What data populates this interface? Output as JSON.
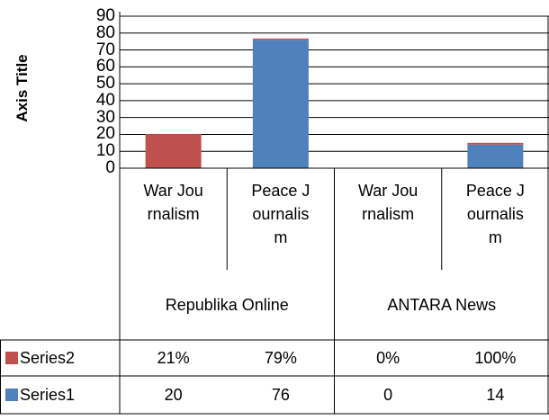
{
  "chart_data": {
    "type": "stacked_bar",
    "y_axis_title": "Axis Title",
    "groups": [
      {
        "name": "Republika Online",
        "categories": [
          "War Journalism",
          "Peace Journalism"
        ]
      },
      {
        "name": "ANTARA News",
        "categories": [
          "War Journalism",
          "Peace Journalism"
        ]
      }
    ],
    "series": [
      {
        "name": "Series1",
        "color": "#4f81bd",
        "point_colors": [
          "#c0504d",
          "#4f81bd",
          "#4f81bd",
          "#4f81bd"
        ],
        "values": [
          20,
          76,
          0,
          14
        ]
      },
      {
        "name": "Series2",
        "color": "#c0504d",
        "values": [
          0.21,
          0.79,
          0,
          1
        ],
        "value_labels": [
          "21%",
          "79%",
          "0%",
          "100%"
        ]
      }
    ],
    "ylim": [
      0,
      90
    ],
    "yticks": [
      0,
      10,
      20,
      30,
      40,
      50,
      60,
      70,
      80,
      90
    ],
    "grid": true,
    "data_table": true
  }
}
